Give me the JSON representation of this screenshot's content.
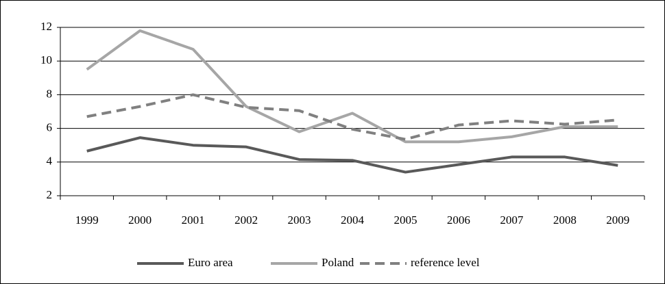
{
  "chart_data": {
    "type": "line",
    "categories": [
      "1999",
      "2000",
      "2001",
      "2002",
      "2003",
      "2004",
      "2005",
      "2006",
      "2007",
      "2008",
      "2009"
    ],
    "series": [
      {
        "name": "Euro area",
        "color": "#595959",
        "style": "solid",
        "values": [
          4.65,
          5.45,
          5.0,
          4.9,
          4.15,
          4.1,
          3.4,
          3.85,
          4.3,
          4.3,
          3.8
        ]
      },
      {
        "name": "Poland",
        "color": "#a6a6a6",
        "style": "solid",
        "values": [
          9.5,
          11.8,
          10.7,
          7.3,
          5.8,
          6.9,
          5.2,
          5.2,
          5.5,
          6.1,
          6.1
        ]
      },
      {
        "name": "reference level",
        "color": "#808080",
        "style": "dashed",
        "values": [
          6.7,
          7.3,
          8.0,
          7.25,
          7.05,
          5.95,
          5.35,
          6.2,
          6.45,
          6.25,
          6.5
        ]
      }
    ],
    "ylim": [
      2,
      12
    ],
    "yticks": [
      2,
      4,
      6,
      8,
      10,
      12
    ],
    "grid": true,
    "legend": "bottom"
  }
}
